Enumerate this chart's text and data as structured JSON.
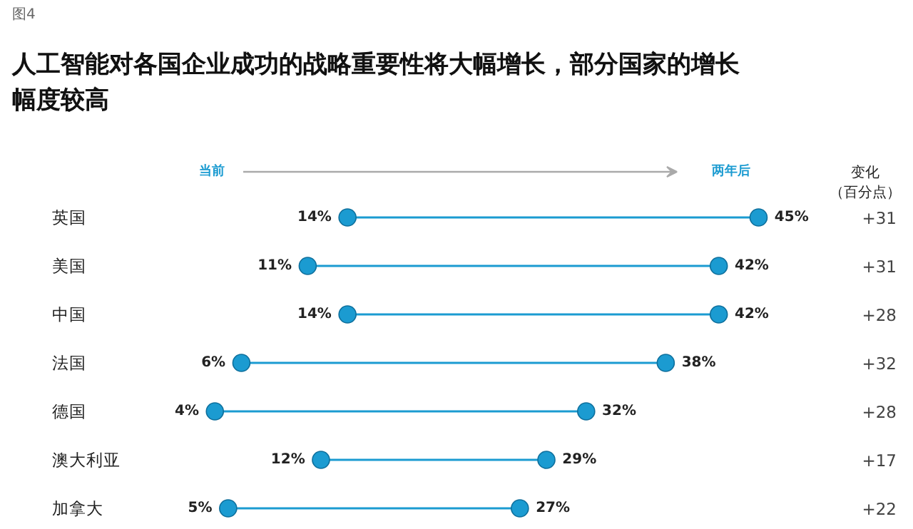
{
  "chart_data": {
    "type": "other",
    "title": "人工智能对各国企业成功的战略重要性将大幅增长，部分国家的增长幅度较高",
    "categories": [
      "英国",
      "美国",
      "中国",
      "法国",
      "德国",
      "澳大利亚",
      "加拿大"
    ],
    "series": [
      {
        "name": "当前",
        "color": "#1b9bd1",
        "values": [
          14,
          11,
          14,
          6,
          4,
          12,
          5
        ],
        "value_labels": [
          "14%",
          "11%",
          "14%",
          "6%",
          "4%",
          "12%",
          "5%"
        ]
      },
      {
        "name": "两年后",
        "color": "#1b9bd1",
        "values": [
          45,
          42,
          42,
          38,
          32,
          29,
          27
        ],
        "value_labels": [
          "45%",
          "42%",
          "42%",
          "38%",
          "32%",
          "29%",
          "27%"
        ]
      }
    ],
    "annotations": [
      "图4",
      "变化（百分点）",
      "+31",
      "+31",
      "+28",
      "+32",
      "+28",
      "+17",
      "+22"
    ]
  }
}
